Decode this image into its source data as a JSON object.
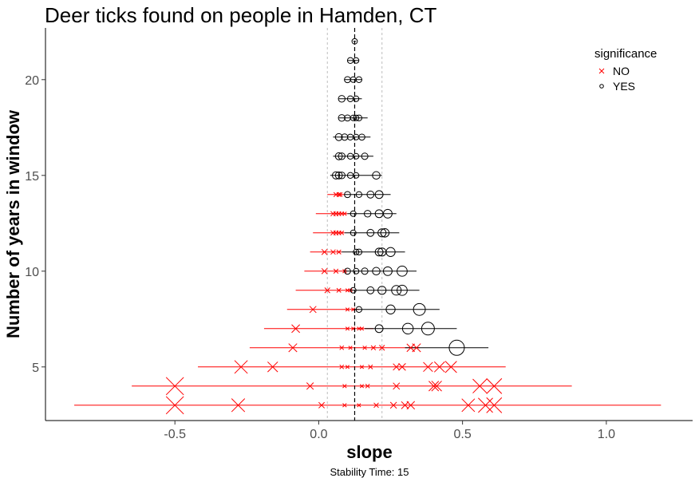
{
  "chart_data": {
    "type": "scatter",
    "title": "Deer ticks found on people in Hamden, CT",
    "xlabel": "slope",
    "ylabel": "Number of years in window",
    "caption": "Stability Time: 15",
    "xlim": [
      -0.95,
      1.3
    ],
    "ylim": [
      2.2,
      22.7
    ],
    "x_ticks": [
      -0.5,
      0.0,
      0.5,
      1.0
    ],
    "x_tick_labels": [
      "-0.5",
      "0.0",
      "0.5",
      "1.0"
    ],
    "y_ticks": [
      5,
      10,
      15,
      20
    ],
    "y_tick_labels": [
      "5",
      "10",
      "15",
      "20"
    ],
    "grid": false,
    "reference_lines": {
      "mean_slope": 0.125,
      "std_low": 0.03,
      "std_high": 0.22
    },
    "legend": {
      "title": "significance",
      "position": "top-right",
      "entries": [
        {
          "label": "NO",
          "marker": "x",
          "color": "#ff0000"
        },
        {
          "label": "YES",
          "marker": "circle",
          "color": "#000000"
        }
      ]
    },
    "rows": [
      {
        "years": 3,
        "sig": "NO",
        "x": [
          -0.5,
          -0.28,
          0.01,
          0.09,
          0.14,
          0.2,
          0.26,
          0.3,
          0.32,
          0.52,
          0.58,
          0.61
        ],
        "lo": -0.85,
        "hi": 1.19
      },
      {
        "years": 4,
        "sig": "NO",
        "x": [
          -0.5,
          -0.03,
          0.09,
          0.15,
          0.17,
          0.27,
          0.4,
          0.41,
          0.56,
          0.61
        ],
        "lo": -0.65,
        "hi": 0.88
      },
      {
        "years": 5,
        "sig": "NO",
        "x": [
          -0.27,
          -0.16,
          0.08,
          0.1,
          0.15,
          0.18,
          0.27,
          0.29,
          0.38,
          0.42,
          0.46
        ],
        "lo": -0.42,
        "hi": 0.65
      },
      {
        "years": 6,
        "sig": "NO",
        "x": [
          -0.09,
          0.08,
          0.11,
          0.16,
          0.19,
          0.22,
          0.32,
          0.34
        ],
        "lo": -0.24,
        "hi": 0.35
      },
      {
        "years": 6,
        "sig": "YES",
        "x": [
          0.48
        ],
        "lo": 0.3,
        "hi": 0.59
      },
      {
        "years": 7,
        "sig": "NO",
        "x": [
          -0.08,
          0.1,
          0.12,
          0.14,
          0.15
        ],
        "lo": -0.19,
        "hi": 0.19
      },
      {
        "years": 7,
        "sig": "YES",
        "x": [
          0.21,
          0.31,
          0.38
        ],
        "lo": 0.16,
        "hi": 0.48
      },
      {
        "years": 8,
        "sig": "NO",
        "x": [
          -0.02,
          0.1,
          0.12
        ],
        "lo": -0.11,
        "hi": 0.14
      },
      {
        "years": 8,
        "sig": "YES",
        "x": [
          0.14,
          0.25,
          0.35
        ],
        "lo": 0.12,
        "hi": 0.42
      },
      {
        "years": 9,
        "sig": "NO",
        "x": [
          0.03,
          0.07,
          0.1,
          0.11
        ],
        "lo": -0.08,
        "hi": 0.12
      },
      {
        "years": 9,
        "sig": "YES",
        "x": [
          0.12,
          0.18,
          0.22,
          0.27,
          0.29
        ],
        "lo": 0.11,
        "hi": 0.35
      },
      {
        "years": 10,
        "sig": "NO",
        "x": [
          0.02,
          0.06,
          0.09
        ],
        "lo": -0.05,
        "hi": 0.1
      },
      {
        "years": 10,
        "sig": "YES",
        "x": [
          0.1,
          0.13,
          0.16,
          0.2,
          0.24,
          0.29
        ],
        "lo": 0.09,
        "hi": 0.34
      },
      {
        "years": 11,
        "sig": "NO",
        "x": [
          0.02,
          0.05,
          0.07
        ],
        "lo": -0.03,
        "hi": 0.08
      },
      {
        "years": 11,
        "sig": "YES",
        "x": [
          0.13,
          0.14,
          0.21,
          0.22,
          0.25
        ],
        "lo": 0.08,
        "hi": 0.3
      },
      {
        "years": 12,
        "sig": "NO",
        "x": [
          0.05,
          0.06,
          0.07,
          0.08
        ],
        "lo": -0.02,
        "hi": 0.09
      },
      {
        "years": 12,
        "sig": "YES",
        "x": [
          0.12,
          0.18,
          0.22,
          0.23
        ],
        "lo": 0.09,
        "hi": 0.28
      },
      {
        "years": 13,
        "sig": "NO",
        "x": [
          0.05,
          0.06,
          0.07,
          0.08,
          0.09
        ],
        "lo": -0.01,
        "hi": 0.1
      },
      {
        "years": 13,
        "sig": "YES",
        "x": [
          0.12,
          0.17,
          0.21,
          0.24
        ],
        "lo": 0.1,
        "hi": 0.27
      },
      {
        "years": 14,
        "sig": "NO",
        "x": [
          0.06,
          0.07,
          0.075
        ],
        "lo": 0.03,
        "hi": 0.09
      },
      {
        "years": 14,
        "sig": "YES",
        "x": [
          0.1,
          0.14,
          0.18,
          0.21
        ],
        "lo": 0.09,
        "hi": 0.25
      },
      {
        "years": 15,
        "sig": "YES",
        "x": [
          0.06,
          0.07,
          0.08,
          0.11,
          0.13,
          0.2
        ],
        "lo": 0.04,
        "hi": 0.22
      },
      {
        "years": 16,
        "sig": "YES",
        "x": [
          0.07,
          0.08,
          0.11,
          0.13,
          0.16
        ],
        "lo": 0.05,
        "hi": 0.19
      },
      {
        "years": 17,
        "sig": "YES",
        "x": [
          0.07,
          0.09,
          0.11,
          0.13,
          0.15
        ],
        "lo": 0.05,
        "hi": 0.18
      },
      {
        "years": 18,
        "sig": "YES",
        "x": [
          0.08,
          0.1,
          0.12,
          0.13,
          0.14
        ],
        "lo": 0.07,
        "hi": 0.17
      },
      {
        "years": 19,
        "sig": "YES",
        "x": [
          0.08,
          0.11,
          0.13
        ],
        "lo": 0.07,
        "hi": 0.15
      },
      {
        "years": 20,
        "sig": "YES",
        "x": [
          0.1,
          0.12,
          0.14
        ],
        "lo": 0.09,
        "hi": 0.15
      },
      {
        "years": 21,
        "sig": "YES",
        "x": [
          0.11,
          0.13
        ],
        "lo": 0.1,
        "hi": 0.14
      },
      {
        "years": 22,
        "sig": "YES",
        "x": [
          0.125
        ],
        "lo": 0.12,
        "hi": 0.13
      }
    ],
    "colors": {
      "NO": "#ff0000",
      "YES": "#000000",
      "mean_line": "#000000",
      "std_line": "#bdbdbd"
    }
  }
}
